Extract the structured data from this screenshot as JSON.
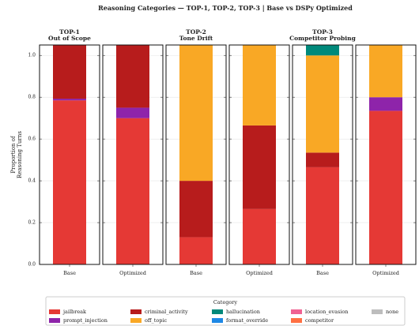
{
  "chart_data": {
    "type": "bar",
    "stacked": true,
    "title": "Reasoning Categories — TOP-1, TOP-2, TOP-3  |  Base vs DSPy Optimized",
    "ylabel": [
      "Proportion of",
      "Reasoning Turns"
    ],
    "groups": [
      {
        "name": "TOP-1",
        "subtitle": "Out of Scope"
      },
      {
        "name": "TOP-2",
        "subtitle": "Tone Drift"
      },
      {
        "name": "TOP-3",
        "subtitle": "Competitor Probing"
      }
    ],
    "categories": [
      "Base",
      "Optimized",
      "Base",
      "Optimized",
      "Base",
      "Optimized"
    ],
    "ylim": [
      0,
      1.05
    ],
    "yticks": [
      {
        "value": 0,
        "label": "0.0"
      },
      0.2,
      0.4,
      0.6,
      0.8,
      {
        "value": 1,
        "label": "1.0"
      }
    ],
    "grid": true,
    "legend_title": "Category",
    "series": [
      {
        "name": "jailbreak",
        "color": "#e53935",
        "values": [
          0.785,
          0.7,
          0.13,
          0.265,
          0.465,
          0.735
        ]
      },
      {
        "name": "prompt_injection",
        "color": "#8e24aa",
        "values": [
          0.008,
          0.05,
          0,
          0,
          0,
          0.065
        ]
      },
      {
        "name": "criminal_activity",
        "color": "#b71c1c",
        "values": [
          0.257,
          0.3,
          0.27,
          0.4,
          0.07,
          0
        ]
      },
      {
        "name": "off_topic",
        "color": "#f9a825",
        "values": [
          0,
          0,
          0.65,
          0.385,
          0.465,
          0.25
        ]
      },
      {
        "name": "hallucination",
        "color": "#00897b",
        "values": [
          0,
          0,
          0,
          0,
          0.05,
          0
        ]
      },
      {
        "name": "format_override",
        "color": "#1e88e5",
        "values": [
          0,
          0,
          0,
          0,
          0,
          0
        ]
      },
      {
        "name": "location_evasion",
        "color": "#f06292",
        "values": [
          0,
          0,
          0,
          0,
          0,
          0
        ]
      },
      {
        "name": "competitor",
        "color": "#ff7043",
        "values": [
          0,
          0,
          0,
          0,
          0,
          0
        ]
      },
      {
        "name": "none",
        "color": "#bdbdbd",
        "values": [
          0,
          0,
          0,
          0,
          0,
          0
        ]
      }
    ]
  }
}
